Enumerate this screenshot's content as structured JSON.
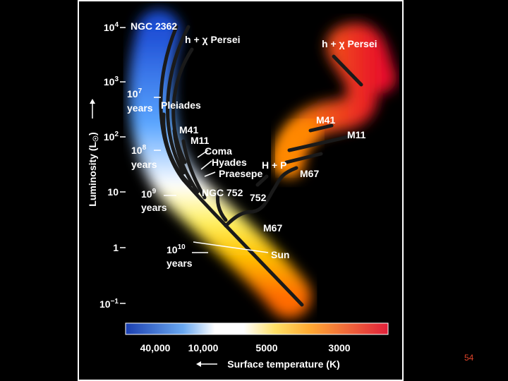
{
  "slide_number": "54",
  "colors": {
    "main_sequence_blue": "#1f4fd6",
    "main_sequence_white": "#ffffff",
    "main_sequence_yellow": "#ffd400",
    "main_sequence_orange": "#ff7a00",
    "giant_red": "#e8102a",
    "track": "#1a1a1a",
    "slide_number": "#e1442a"
  },
  "y_axis": {
    "title": "Luminosity (L",
    "title_sub": "☉",
    "title_close": ")",
    "ticks": [
      {
        "base": "10",
        "exp": "4"
      },
      {
        "base": "10",
        "exp": "3"
      },
      {
        "base": "10",
        "exp": "2"
      },
      {
        "base": "10",
        "exp": ""
      },
      {
        "base": "1",
        "exp": ""
      },
      {
        "base": "10",
        "exp": "−1"
      }
    ]
  },
  "x_axis": {
    "title": "Surface temperature (K)",
    "ticks": [
      "40,000",
      "10,000",
      "5000",
      "3000"
    ]
  },
  "labels": {
    "ngc2362": "NGC 2362",
    "hx_persei_top": "h + χ Persei",
    "hx_persei_right": "h + χ Persei",
    "pleiades": "Pleiades",
    "m41_left": "M41",
    "m11_left": "M11",
    "coma": "Coma",
    "hyades": "Hyades",
    "praesepe": "Praesepe",
    "hp": "H + P",
    "m67_right": "M67",
    "m41_right": "M41",
    "m11_right": "M11",
    "ngc752": "NGC 752",
    "n752": "752",
    "m67_bottom": "M67",
    "sun": "Sun"
  },
  "ages": [
    {
      "base": "10",
      "exp": "7",
      "unit": "years"
    },
    {
      "base": "10",
      "exp": "8",
      "unit": "years"
    },
    {
      "base": "10",
      "exp": "9",
      "unit": "years"
    },
    {
      "base": "10",
      "exp": "10",
      "unit": "years"
    }
  ]
}
